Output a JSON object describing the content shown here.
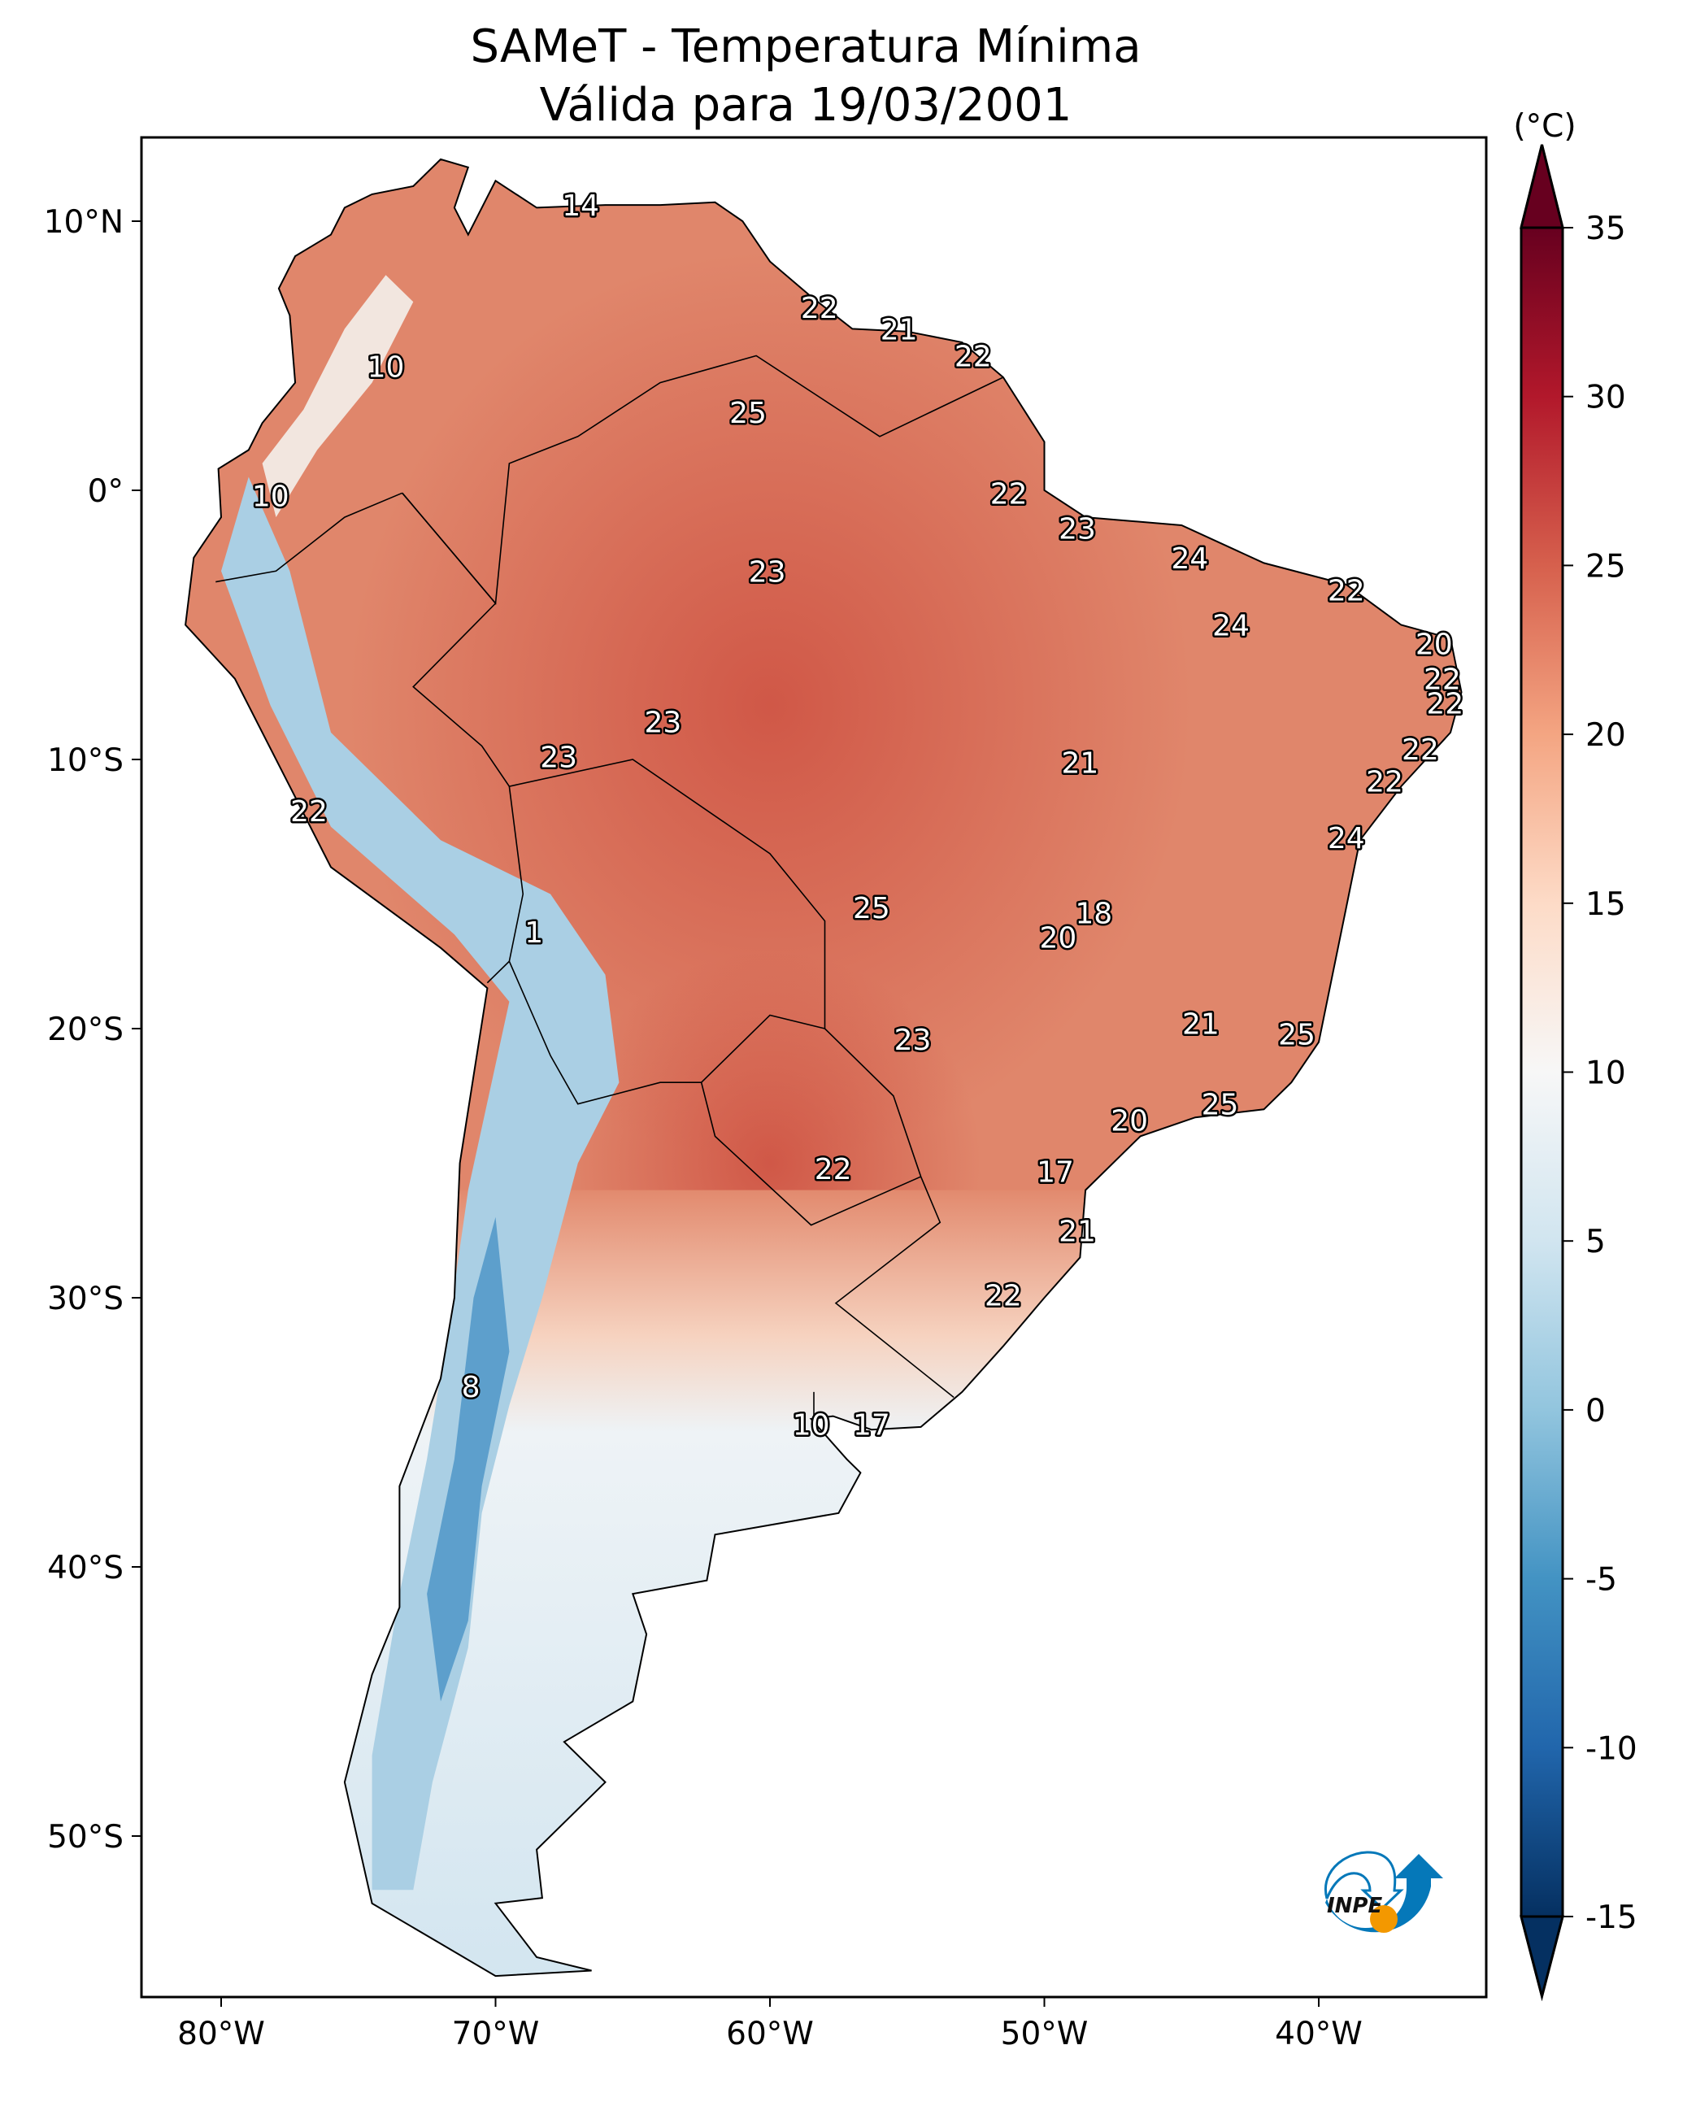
{
  "title_line1": "SAMeT - Temperatura Mínima",
  "title_line2": "Válida para 19/03/2001",
  "chart_data": {
    "type": "heatmap",
    "title": "SAMeT - Temperatura Mínima\nVálida para 19/03/2001",
    "xlim": [
      -82.9,
      -33.9
    ],
    "ylim": [
      -56,
      13.1
    ],
    "x_ticks": [
      {
        "value": -80,
        "label": "80°W"
      },
      {
        "value": -70,
        "label": "70°W"
      },
      {
        "value": -60,
        "label": "60°W"
      },
      {
        "value": -50,
        "label": "50°W"
      },
      {
        "value": -40,
        "label": "40°W"
      }
    ],
    "y_ticks": [
      {
        "value": 10,
        "label": "10°N"
      },
      {
        "value": 0,
        "label": "0°"
      },
      {
        "value": -10,
        "label": "10°S"
      },
      {
        "value": -20,
        "label": "20°S"
      },
      {
        "value": -30,
        "label": "30°S"
      },
      {
        "value": -40,
        "label": "40°S"
      },
      {
        "value": -50,
        "label": "50°S"
      }
    ],
    "colorbar": {
      "label": "(°C)",
      "range": [
        -15,
        35
      ],
      "cmap": "RdBu_r",
      "extend": "both",
      "ticks": [
        {
          "value": 35,
          "label": "35"
        },
        {
          "value": 30,
          "label": "30"
        },
        {
          "value": 25,
          "label": "25"
        },
        {
          "value": 20,
          "label": "20"
        },
        {
          "value": 15,
          "label": "15"
        },
        {
          "value": 10,
          "label": "10"
        },
        {
          "value": 5,
          "label": "5"
        },
        {
          "value": 0,
          "label": "0"
        },
        {
          "value": -5,
          "label": "-5"
        },
        {
          "value": -10,
          "label": "-10"
        },
        {
          "value": -15,
          "label": "-15"
        }
      ],
      "colors": [
        "#053061",
        "#2166ac",
        "#4393c3",
        "#92c5de",
        "#d1e5f0",
        "#f7f7f7",
        "#fddbc7",
        "#f4a582",
        "#d6604d",
        "#b2182b",
        "#67001f"
      ]
    },
    "station_labels": [
      {
        "lon": -66.9,
        "lat": 10.6,
        "value": "14"
      },
      {
        "lon": -58.2,
        "lat": 6.8,
        "value": "22"
      },
      {
        "lon": -55.3,
        "lat": 6.0,
        "value": "21"
      },
      {
        "lon": -52.6,
        "lat": 5.0,
        "value": "22"
      },
      {
        "lon": -74.0,
        "lat": 4.6,
        "value": "10"
      },
      {
        "lon": -60.8,
        "lat": 2.9,
        "value": "25"
      },
      {
        "lon": -78.2,
        "lat": -0.2,
        "value": "10"
      },
      {
        "lon": -51.3,
        "lat": -0.1,
        "value": "22"
      },
      {
        "lon": -48.8,
        "lat": -1.4,
        "value": "23"
      },
      {
        "lon": -44.7,
        "lat": -2.5,
        "value": "24"
      },
      {
        "lon": -60.1,
        "lat": -3.0,
        "value": "23"
      },
      {
        "lon": -39.0,
        "lat": -3.7,
        "value": "22"
      },
      {
        "lon": -43.2,
        "lat": -5.0,
        "value": "24"
      },
      {
        "lon": -35.8,
        "lat": -5.7,
        "value": "20"
      },
      {
        "lon": -35.5,
        "lat": -7.0,
        "value": "22"
      },
      {
        "lon": -35.4,
        "lat": -7.9,
        "value": "22"
      },
      {
        "lon": -63.9,
        "lat": -8.6,
        "value": "23"
      },
      {
        "lon": -36.3,
        "lat": -9.6,
        "value": "22"
      },
      {
        "lon": -67.7,
        "lat": -9.9,
        "value": "23"
      },
      {
        "lon": -48.7,
        "lat": -10.1,
        "value": "21"
      },
      {
        "lon": -37.6,
        "lat": -10.8,
        "value": "22"
      },
      {
        "lon": -76.8,
        "lat": -11.9,
        "value": "22"
      },
      {
        "lon": -39.0,
        "lat": -12.9,
        "value": "24"
      },
      {
        "lon": -56.3,
        "lat": -15.5,
        "value": "25"
      },
      {
        "lon": -48.2,
        "lat": -15.7,
        "value": "18"
      },
      {
        "lon": -68.6,
        "lat": -16.4,
        "value": "1"
      },
      {
        "lon": -49.5,
        "lat": -16.6,
        "value": "20"
      },
      {
        "lon": -44.3,
        "lat": -19.8,
        "value": "21"
      },
      {
        "lon": -40.8,
        "lat": -20.2,
        "value": "25"
      },
      {
        "lon": -54.8,
        "lat": -20.4,
        "value": "23"
      },
      {
        "lon": -43.6,
        "lat": -22.8,
        "value": "25"
      },
      {
        "lon": -46.9,
        "lat": -23.4,
        "value": "20"
      },
      {
        "lon": -57.7,
        "lat": -25.2,
        "value": "22"
      },
      {
        "lon": -49.6,
        "lat": -25.3,
        "value": "17"
      },
      {
        "lon": -48.8,
        "lat": -27.5,
        "value": "21"
      },
      {
        "lon": -51.5,
        "lat": -29.9,
        "value": "22"
      },
      {
        "lon": -70.9,
        "lat": -33.3,
        "value": "8"
      },
      {
        "lon": -58.5,
        "lat": -34.7,
        "value": "10"
      },
      {
        "lon": -56.3,
        "lat": -34.7,
        "value": "17"
      }
    ]
  },
  "logo": {
    "text": "INPE",
    "colors": [
      "#0578b9",
      "#f39800"
    ]
  }
}
